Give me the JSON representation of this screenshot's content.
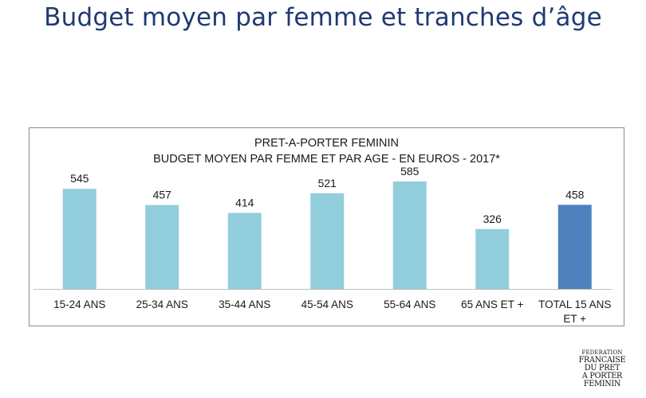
{
  "page": {
    "title": "Budget moyen par femme et tranches d’âge"
  },
  "chart_data": {
    "type": "bar",
    "title": "PRET-A-PORTER FEMININ",
    "subtitle": "BUDGET MOYEN PAR FEMME ET PAR AGE - EN EUROS - 2017*",
    "categories": [
      "15-24 ANS",
      "25-34 ANS",
      "35-44 ANS",
      "45-54 ANS",
      "55-64 ANS",
      "65 ANS ET +",
      "TOTAL 15 ANS ET +"
    ],
    "values": [
      545,
      457,
      414,
      521,
      585,
      326,
      458
    ],
    "colors": [
      "#92cddc",
      "#92cddc",
      "#92cddc",
      "#92cddc",
      "#92cddc",
      "#92cddc",
      "#4f81bd"
    ],
    "ylim": [
      0,
      650
    ],
    "grid": false,
    "legend": "none",
    "data_labels": true
  },
  "logo": {
    "lines": [
      "FEDERATION",
      "FRANCAISE",
      "DU PRET",
      "A PORTER",
      "FEMININ"
    ]
  }
}
